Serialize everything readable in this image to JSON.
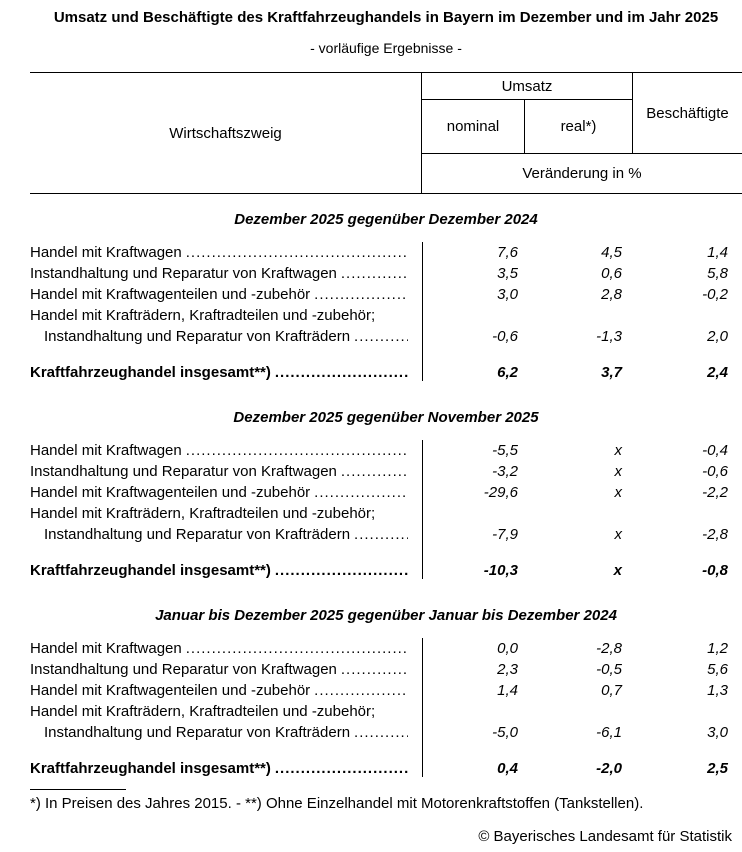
{
  "page": {
    "title": "Umsatz und Beschäftigte des Kraftfahrzeughandels in Bayern im Dezember und im Jahr 2025",
    "subtitle": "- vorläufige Ergebnisse -"
  },
  "table": {
    "header": {
      "branch": "Wirtschaftszweig",
      "umsatz_group": "Umsatz",
      "nominal": "nominal",
      "real": "real*)",
      "employees": "Beschäftigte",
      "unit": "Veränderung in %"
    },
    "sections": [
      {
        "title": "Dezember 2025 gegenüber Dezember 2024",
        "rows": [
          {
            "label": "Handel mit Kraftwagen",
            "nominal": "7,6",
            "real": "4,5",
            "employees": "1,4"
          },
          {
            "label": "Instandhaltung und Reparatur von Kraftwagen",
            "nominal": "3,5",
            "real": "0,6",
            "employees": "5,8"
          },
          {
            "label": "Handel mit Kraftwagenteilen und -zubehör",
            "nominal": "3,0",
            "real": "2,8",
            "employees": "-0,2"
          },
          {
            "label": "Handel mit Krafträdern, Kraftradteilen und -zubehör;"
          },
          {
            "label": "Instandhaltung und Reparatur von Krafträdern",
            "nominal": "-0,6",
            "real": "-1,3",
            "employees": "2,0"
          }
        ],
        "total": {
          "label": "Kraftfahrzeughandel insgesamt**)",
          "nominal": "6,2",
          "real": "3,7",
          "employees": "2,4"
        }
      },
      {
        "title": "Dezember 2025 gegenüber November 2025",
        "rows": [
          {
            "label": "Handel mit Kraftwagen",
            "nominal": "-5,5",
            "real": "x",
            "employees": "-0,4"
          },
          {
            "label": "Instandhaltung und Reparatur von Kraftwagen",
            "nominal": "-3,2",
            "real": "x",
            "employees": "-0,6"
          },
          {
            "label": "Handel mit Kraftwagenteilen und -zubehör",
            "nominal": "-29,6",
            "real": "x",
            "employees": "-2,2"
          },
          {
            "label": "Handel mit Krafträdern, Kraftradteilen und -zubehör;"
          },
          {
            "label": "Instandhaltung und Reparatur von Krafträdern",
            "nominal": "-7,9",
            "real": "x",
            "employees": "-2,8"
          }
        ],
        "total": {
          "label": "Kraftfahrzeughandel insgesamt**)",
          "nominal": "-10,3",
          "real": "x",
          "employees": "-0,8"
        }
      },
      {
        "title": "Januar bis Dezember 2025 gegenüber Januar bis Dezember 2024",
        "rows": [
          {
            "label": "Handel mit Kraftwagen",
            "nominal": "0,0",
            "real": "-2,8",
            "employees": "1,2"
          },
          {
            "label": "Instandhaltung und Reparatur von Kraftwagen",
            "nominal": "2,3",
            "real": "-0,5",
            "employees": "5,6"
          },
          {
            "label": "Handel mit Kraftwagenteilen und -zubehör",
            "nominal": "1,4",
            "real": "0,7",
            "employees": "1,3"
          },
          {
            "label": "Handel mit Krafträdern, Kraftradteilen und -zubehör;"
          },
          {
            "label": "Instandhaltung und Reparatur von Krafträdern",
            "nominal": "-5,0",
            "real": "-6,1",
            "employees": "3,0"
          }
        ],
        "total": {
          "label": "Kraftfahrzeughandel insgesamt**)",
          "nominal": "0,4",
          "real": "-2,0",
          "employees": "2,5"
        }
      }
    ]
  },
  "footer": {
    "footnote": "*) In Preisen des Jahres 2015. - **) Ohne Einzelhandel mit Motorenkraftstoffen (Tankstellen).",
    "copyright": "© Bayerisches Landesamt für Statistik"
  }
}
